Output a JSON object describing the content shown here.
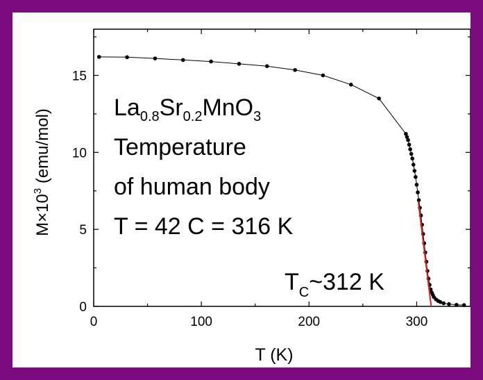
{
  "chart_data": {
    "type": "scatter",
    "title": "",
    "xlabel": "T (K)",
    "ylabel": {
      "main": "M×10",
      "sup": "3",
      "units": " (emu/mol)"
    },
    "xlim": [
      0,
      350
    ],
    "ylim": [
      0,
      18
    ],
    "xticks": [
      0,
      100,
      200,
      300
    ],
    "yticks": [
      0,
      5,
      10,
      15
    ],
    "grid": false,
    "series": [
      {
        "color": "#000000",
        "marker": "dot",
        "line": true,
        "points": [
          [
            5,
            16.2
          ],
          [
            31,
            16.18
          ],
          [
            57,
            16.1
          ],
          [
            83,
            16.0
          ],
          [
            109,
            15.9
          ],
          [
            135,
            15.75
          ],
          [
            161,
            15.6
          ],
          [
            187,
            15.35
          ],
          [
            213,
            15.0
          ],
          [
            239,
            14.4
          ],
          [
            265,
            13.5
          ],
          [
            290,
            11.2
          ],
          [
            291,
            11.0
          ],
          [
            292,
            10.8
          ],
          [
            293,
            10.5
          ],
          [
            294,
            10.2
          ],
          [
            295,
            9.9
          ],
          [
            296,
            9.6
          ],
          [
            297,
            9.2
          ],
          [
            298,
            8.8
          ],
          [
            299,
            8.4
          ],
          [
            300,
            7.9
          ],
          [
            301,
            7.4
          ],
          [
            302,
            6.9
          ],
          [
            303,
            6.4
          ],
          [
            304,
            5.9
          ],
          [
            305,
            5.3
          ],
          [
            306,
            4.7
          ],
          [
            307,
            4.1
          ],
          [
            308,
            3.5
          ],
          [
            309,
            2.9
          ],
          [
            310,
            2.3
          ],
          [
            311,
            1.8
          ],
          [
            312,
            1.4
          ],
          [
            313,
            1.1
          ],
          [
            314,
            0.9
          ],
          [
            315,
            0.75
          ],
          [
            316,
            0.6
          ],
          [
            318,
            0.45
          ],
          [
            320,
            0.35
          ],
          [
            322,
            0.28
          ],
          [
            325,
            0.2
          ],
          [
            330,
            0.15
          ],
          [
            337,
            0.1
          ],
          [
            344,
            0.08
          ]
        ]
      }
    ],
    "fit_line": {
      "color": "#e0201e",
      "points": [
        [
          301.5,
          6.8
        ],
        [
          313.5,
          0
        ]
      ]
    },
    "annotations": {
      "compound": {
        "parts": [
          {
            "text": "La"
          },
          {
            "text": "0.8",
            "sub": true
          },
          {
            "text": "Sr"
          },
          {
            "text": "0.2",
            "sub": true
          },
          {
            "text": "MnO"
          },
          {
            "text": "3",
            "sub": true
          }
        ]
      },
      "line2": "Temperature",
      "line3": "of human body",
      "line4": "T = 42 C = 316 K",
      "tc": {
        "main": "T",
        "sub": "C",
        "rest": "~312 K"
      }
    }
  }
}
